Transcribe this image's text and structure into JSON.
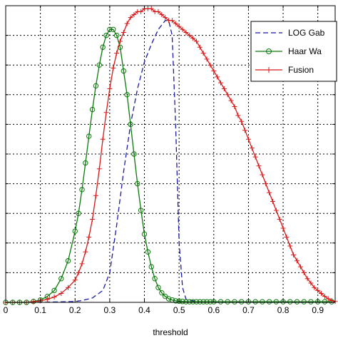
{
  "chart_data": {
    "type": "line",
    "xlabel": "threshold",
    "ylabel": "",
    "xlim": [
      0,
      0.95
    ],
    "ylim": [
      0,
      1
    ],
    "x_ticks": [
      "0",
      "0.1",
      "0.2",
      "0.3",
      "0.4",
      "0.5",
      "0.6",
      "0.7",
      "0.8",
      "0.9"
    ],
    "grid": true,
    "legend_position": "top-right",
    "series": [
      {
        "name": "LOG Gab",
        "color": "#1a1aa8",
        "style": "dashed",
        "marker": "none",
        "x": [
          0,
          0.1,
          0.2,
          0.22,
          0.25,
          0.28,
          0.3,
          0.32,
          0.34,
          0.36,
          0.38,
          0.4,
          0.42,
          0.44,
          0.46,
          0.47,
          0.48,
          0.49,
          0.5,
          0.51,
          0.52,
          0.55,
          0.6,
          0.7,
          0.8,
          0.9,
          0.95
        ],
        "y": [
          0,
          0,
          0.003,
          0.006,
          0.015,
          0.04,
          0.1,
          0.26,
          0.44,
          0.6,
          0.72,
          0.81,
          0.87,
          0.92,
          0.95,
          0.95,
          0.9,
          0.6,
          0.2,
          0.05,
          0.01,
          0.003,
          0,
          0,
          0,
          0,
          0
        ]
      },
      {
        "name": "Haar Wa",
        "color": "#0a7a0a",
        "style": "solid",
        "marker": "circle",
        "x": [
          0,
          0.02,
          0.04,
          0.06,
          0.08,
          0.1,
          0.12,
          0.14,
          0.16,
          0.18,
          0.2,
          0.21,
          0.22,
          0.23,
          0.24,
          0.25,
          0.26,
          0.27,
          0.28,
          0.29,
          0.3,
          0.31,
          0.32,
          0.33,
          0.34,
          0.35,
          0.36,
          0.37,
          0.38,
          0.39,
          0.4,
          0.41,
          0.42,
          0.43,
          0.44,
          0.45,
          0.46,
          0.47,
          0.48,
          0.49,
          0.5,
          0.51,
          0.52,
          0.53,
          0.54,
          0.55,
          0.56,
          0.57,
          0.58,
          0.59,
          0.6,
          0.62,
          0.64,
          0.66,
          0.68,
          0.7,
          0.72,
          0.74,
          0.76,
          0.78,
          0.8,
          0.82,
          0.84,
          0.86,
          0.88,
          0.9,
          0.92,
          0.94
        ],
        "y": [
          0,
          0,
          0,
          0,
          0.003,
          0.008,
          0.02,
          0.04,
          0.08,
          0.14,
          0.24,
          0.3,
          0.38,
          0.47,
          0.56,
          0.65,
          0.73,
          0.8,
          0.86,
          0.9,
          0.92,
          0.92,
          0.9,
          0.86,
          0.78,
          0.7,
          0.6,
          0.5,
          0.4,
          0.31,
          0.23,
          0.17,
          0.12,
          0.08,
          0.05,
          0.032,
          0.02,
          0.012,
          0.008,
          0.005,
          0.004,
          0.003,
          0.002,
          0.002,
          0.002,
          0.002,
          0.002,
          0.002,
          0.002,
          0.002,
          0.002,
          0.002,
          0.002,
          0.002,
          0.002,
          0.002,
          0.002,
          0.002,
          0.002,
          0.002,
          0.002,
          0.002,
          0.002,
          0.002,
          0.002,
          0.002,
          0.002,
          0.002
        ]
      },
      {
        "name": "Fusion",
        "color": "#d81818",
        "style": "solid",
        "marker": "plus",
        "x": [
          0,
          0.02,
          0.04,
          0.06,
          0.08,
          0.1,
          0.12,
          0.14,
          0.16,
          0.18,
          0.2,
          0.21,
          0.22,
          0.23,
          0.24,
          0.25,
          0.26,
          0.27,
          0.28,
          0.29,
          0.3,
          0.31,
          0.32,
          0.33,
          0.34,
          0.35,
          0.36,
          0.37,
          0.38,
          0.39,
          0.4,
          0.41,
          0.42,
          0.43,
          0.44,
          0.45,
          0.46,
          0.47,
          0.48,
          0.49,
          0.5,
          0.51,
          0.52,
          0.53,
          0.54,
          0.55,
          0.56,
          0.57,
          0.58,
          0.59,
          0.6,
          0.61,
          0.62,
          0.63,
          0.64,
          0.65,
          0.66,
          0.67,
          0.68,
          0.69,
          0.7,
          0.71,
          0.72,
          0.73,
          0.74,
          0.75,
          0.76,
          0.77,
          0.78,
          0.79,
          0.8,
          0.81,
          0.82,
          0.83,
          0.84,
          0.85,
          0.86,
          0.87,
          0.88,
          0.89,
          0.9,
          0.91,
          0.92,
          0.93,
          0.94,
          0.95
        ],
        "y": [
          0,
          0,
          0,
          0,
          0.002,
          0.005,
          0.01,
          0.018,
          0.03,
          0.05,
          0.075,
          0.1,
          0.13,
          0.17,
          0.22,
          0.28,
          0.36,
          0.45,
          0.55,
          0.64,
          0.72,
          0.79,
          0.84,
          0.88,
          0.91,
          0.94,
          0.96,
          0.97,
          0.98,
          0.98,
          0.99,
          0.99,
          0.99,
          0.98,
          0.98,
          0.97,
          0.96,
          0.95,
          0.95,
          0.94,
          0.93,
          0.92,
          0.91,
          0.9,
          0.89,
          0.88,
          0.86,
          0.84,
          0.82,
          0.8,
          0.78,
          0.76,
          0.74,
          0.72,
          0.7,
          0.68,
          0.66,
          0.63,
          0.61,
          0.58,
          0.55,
          0.52,
          0.49,
          0.46,
          0.43,
          0.4,
          0.37,
          0.34,
          0.31,
          0.28,
          0.25,
          0.22,
          0.19,
          0.16,
          0.14,
          0.12,
          0.1,
          0.08,
          0.065,
          0.05,
          0.04,
          0.03,
          0.02,
          0.012,
          0.006,
          0.003
        ]
      }
    ]
  }
}
